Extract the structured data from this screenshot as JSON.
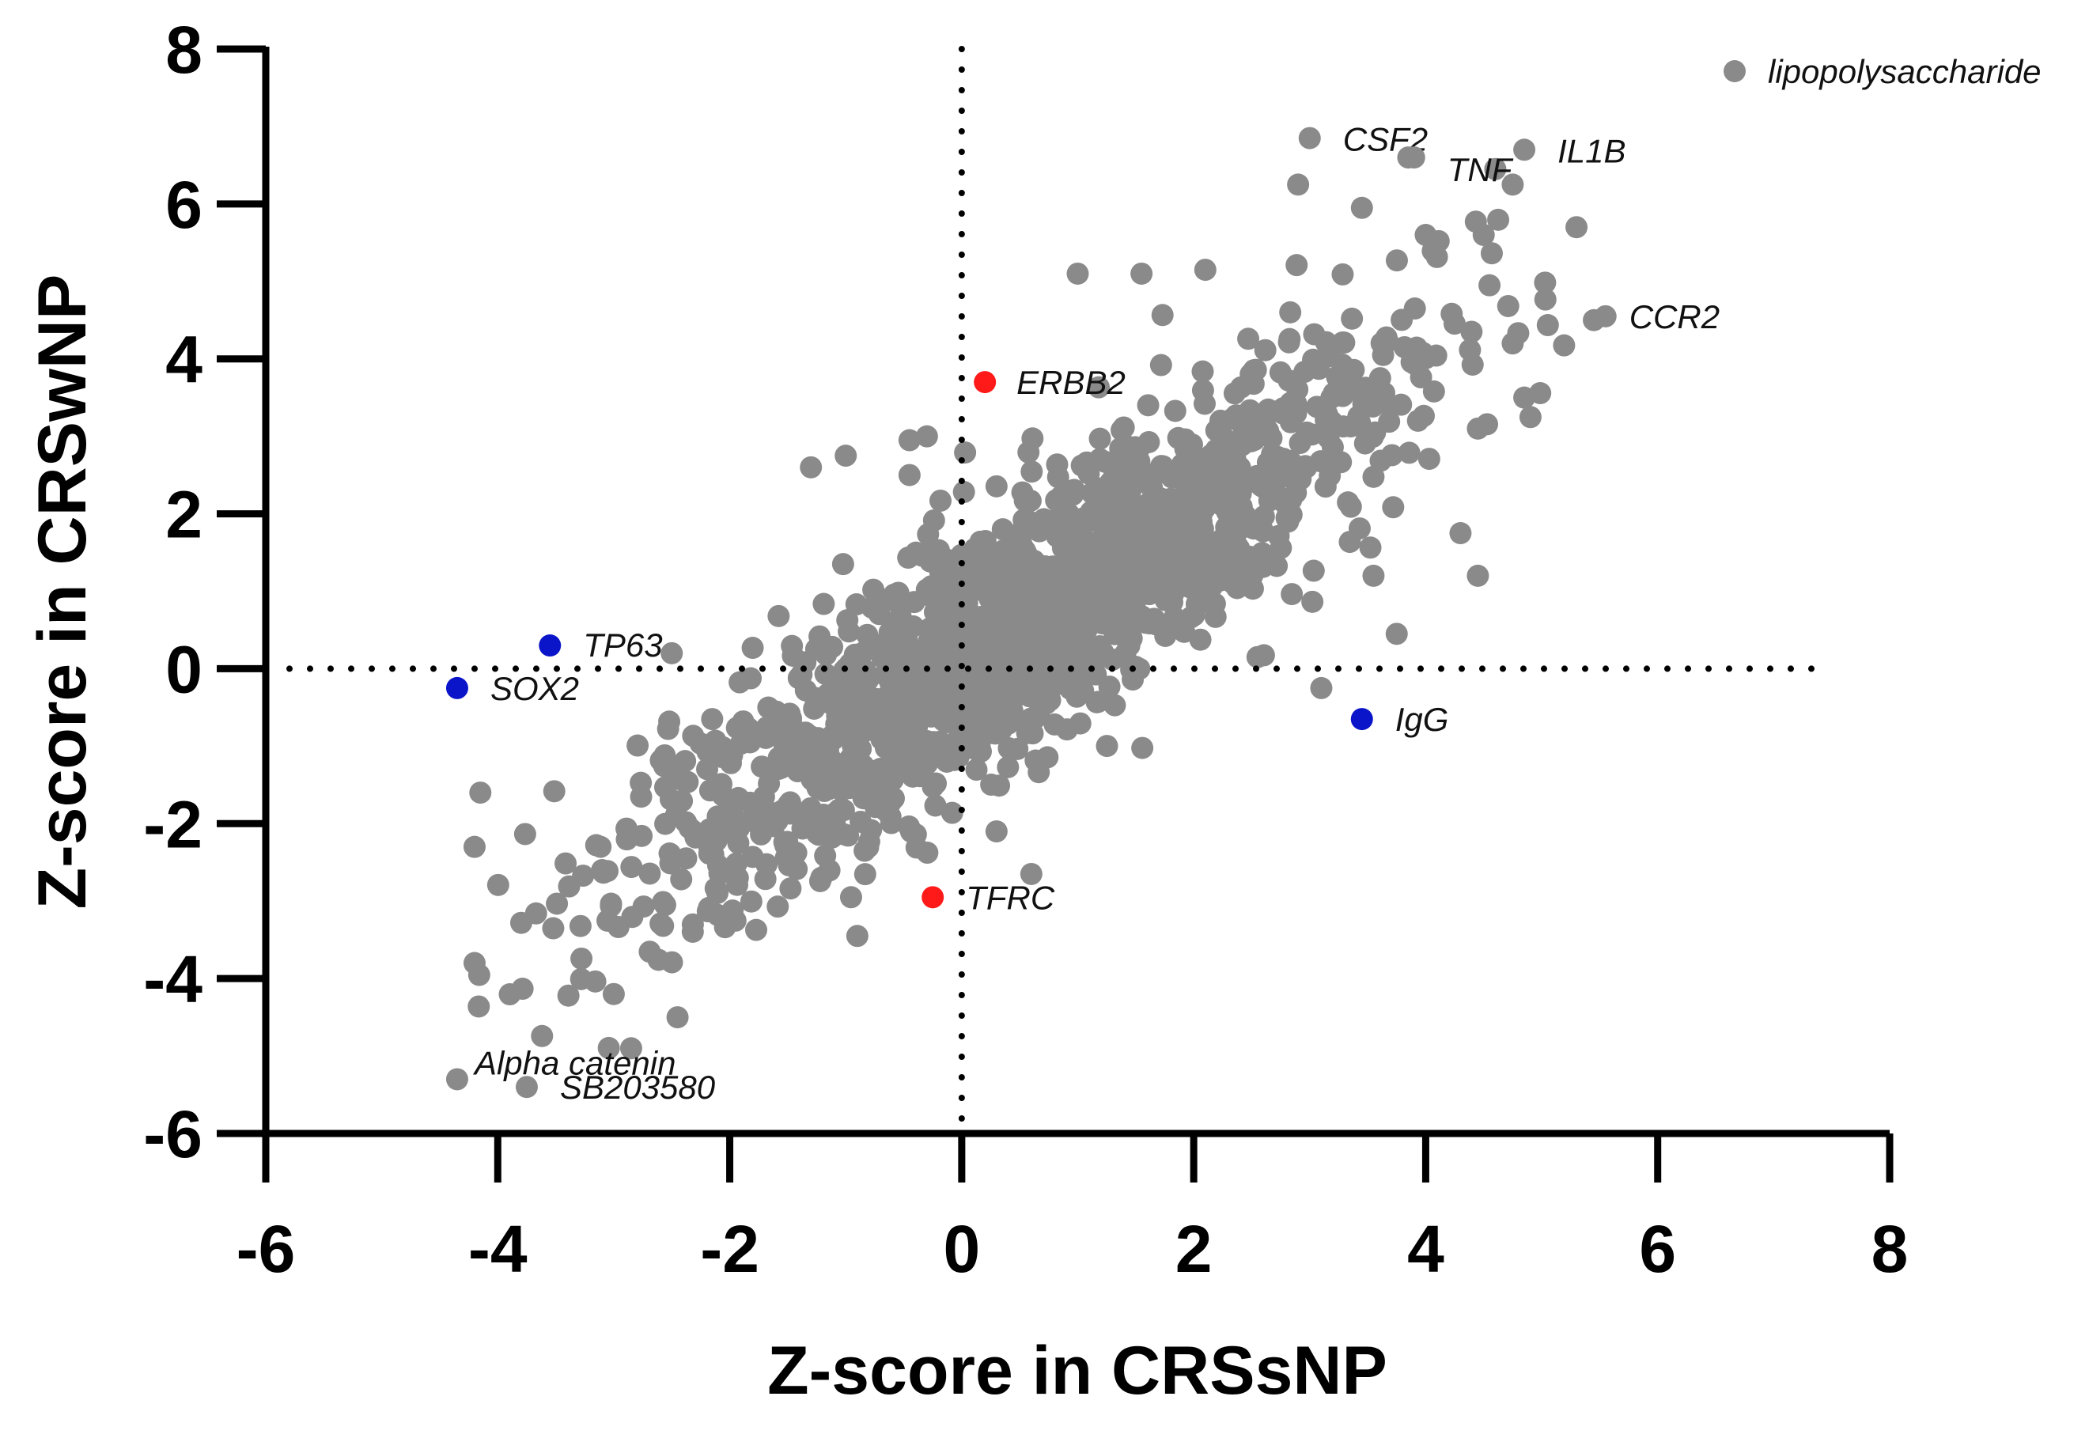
{
  "chart_data": {
    "type": "scatter",
    "title": "",
    "xlabel": "Z-score in CRSsNP",
    "ylabel": "Z-score in CRSwNP",
    "xlim": [
      -6,
      8
    ],
    "ylim": [
      -6,
      8
    ],
    "x_ticks": [
      "-6",
      "-4",
      "-2",
      "0",
      "2",
      "4",
      "6",
      "8"
    ],
    "y_ticks": [
      "-6",
      "-4",
      "-2",
      "0",
      "2",
      "4",
      "6",
      "8"
    ],
    "x_tick_values": [
      -6,
      -4,
      -2,
      0,
      2,
      4,
      6,
      8
    ],
    "y_tick_values": [
      -6,
      -4,
      -2,
      0,
      2,
      4,
      6,
      8
    ],
    "reference_lines": {
      "x": 0,
      "y": 0,
      "style": "dotted"
    },
    "grid": false,
    "legend": {
      "label": "lipopolysaccharide",
      "placement": "top-right",
      "color": "#8a8a8a"
    },
    "colors": {
      "gray": "#8a8a8a",
      "red": "#ff1a1a",
      "blue": "#0a14c8"
    },
    "background_cloud": {
      "count": 1500,
      "slope": 0.95,
      "intercept": 0.1,
      "x_center": 0.6,
      "x_spread": 1.7,
      "residual_spread": 0.85,
      "x_range": [
        -4.2,
        5.2
      ]
    },
    "labeled_points": [
      {
        "label": "CSF2",
        "x": 3.0,
        "y": 6.85,
        "color": "gray"
      },
      {
        "label": "TNF",
        "x": 3.9,
        "y": 6.6,
        "color": "gray"
      },
      {
        "label": "IL1B",
        "x": 4.85,
        "y": 6.7,
        "color": "gray"
      },
      {
        "label": "CCR2",
        "x": 5.55,
        "y": 4.55,
        "color": "gray"
      },
      {
        "label": "ERBB2",
        "x": 0.2,
        "y": 3.7,
        "color": "red"
      },
      {
        "label": "TFRC",
        "x": -0.25,
        "y": -2.95,
        "color": "red"
      },
      {
        "label": "TP63",
        "x": -3.55,
        "y": 0.3,
        "color": "blue"
      },
      {
        "label": "SOX2",
        "x": -4.35,
        "y": -0.25,
        "color": "blue"
      },
      {
        "label": "IgG",
        "x": 3.45,
        "y": -0.65,
        "color": "blue"
      },
      {
        "label": "Alpha catenin",
        "x": -4.35,
        "y": -5.3,
        "color": "gray"
      },
      {
        "label": "SB203580",
        "x": -3.75,
        "y": -5.4,
        "color": "gray"
      }
    ],
    "extra_points": [
      {
        "x": 3.85,
        "y": 6.6
      },
      {
        "x": 4.6,
        "y": 6.45
      },
      {
        "x": 4.75,
        "y": 6.25
      },
      {
        "x": 2.9,
        "y": 6.25
      },
      {
        "x": 5.3,
        "y": 5.7
      },
      {
        "x": 5.45,
        "y": 4.5
      },
      {
        "x": 4.85,
        "y": 3.5
      },
      {
        "x": 4.45,
        "y": 1.2
      },
      {
        "x": 3.55,
        "y": 1.2
      },
      {
        "x": 4.3,
        "y": 1.75
      },
      {
        "x": 3.75,
        "y": 0.45
      },
      {
        "x": 3.1,
        "y": -0.25
      },
      {
        "x": 2.55,
        "y": 0.15
      },
      {
        "x": -0.3,
        "y": 3.0
      },
      {
        "x": -0.45,
        "y": 2.5
      },
      {
        "x": -0.45,
        "y": 2.95
      },
      {
        "x": -1.3,
        "y": 2.6
      },
      {
        "x": -1.0,
        "y": 2.75
      },
      {
        "x": -2.45,
        "y": -4.5
      },
      {
        "x": -2.85,
        "y": -4.9
      },
      {
        "x": -3.0,
        "y": -4.2
      },
      {
        "x": -4.2,
        "y": -3.8
      },
      {
        "x": -4.15,
        "y": -1.6
      },
      {
        "x": -4.2,
        "y": -2.3
      },
      {
        "x": -3.1,
        "y": -2.6
      },
      {
        "x": -2.5,
        "y": 0.2
      },
      {
        "x": 1.0,
        "y": 5.1
      },
      {
        "x": 1.55,
        "y": 5.1
      },
      {
        "x": 2.1,
        "y": 5.15
      },
      {
        "x": 3.45,
        "y": 5.95
      },
      {
        "x": 4.0,
        "y": 5.6
      },
      {
        "x": 4.5,
        "y": 5.6
      },
      {
        "x": 4.55,
        "y": 4.95
      },
      {
        "x": 4.75,
        "y": 4.2
      },
      {
        "x": 4.45,
        "y": 3.1
      },
      {
        "x": 0.6,
        "y": -2.65
      },
      {
        "x": 0.3,
        "y": -2.1
      },
      {
        "x": -0.9,
        "y": -3.45
      }
    ]
  }
}
